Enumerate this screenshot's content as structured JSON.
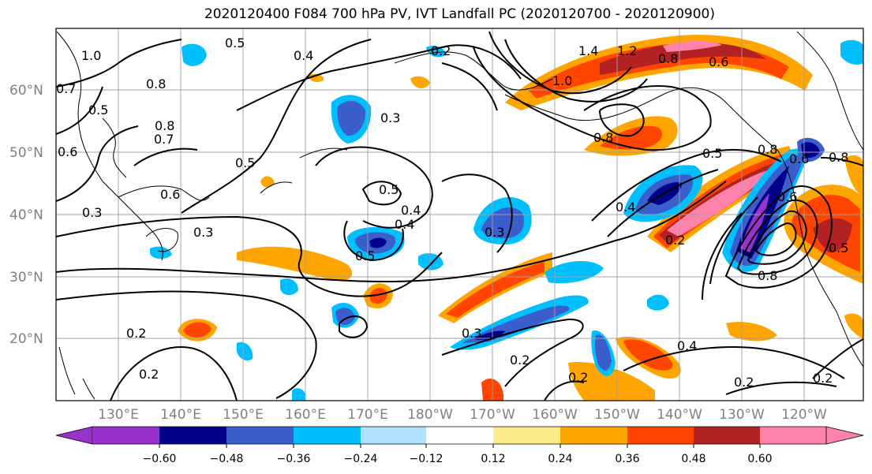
{
  "title": "2020120400 F084 700 hPa PV, IVT Landfall PC (2020120700 - 2020120900)",
  "lat_labels": [
    "60°N",
    "50°N",
    "40°N",
    "30°N",
    "20°N"
  ],
  "lon_labels": [
    "130°E",
    "140°E",
    "150°E",
    "160°E",
    "170°E",
    "180°W",
    "170°W",
    "160°W",
    "150°W",
    "140°W",
    "130°W",
    "120°W"
  ],
  "colorbar": {
    "ticks": [
      "−0.60",
      "−0.48",
      "−0.36",
      "−0.24",
      "−0.12",
      "0.12",
      "0.24",
      "0.36",
      "0.48",
      "0.60"
    ],
    "colors": [
      "#9932cc",
      "#00008b",
      "#3a5fcd",
      "#00bfff",
      "#b0e2ff",
      "#ffffff",
      "#ffec8b",
      "#ffa500",
      "#ff4500",
      "#b22222",
      "#ff82ab"
    ]
  },
  "contour_labels": [
    "1.0",
    "0.5",
    "0.4",
    "0.2",
    "1.4",
    "1.2",
    "0.8",
    "0.6",
    "0.7",
    "0.8",
    "0.5",
    "1.0",
    "0.3",
    "0.8",
    "0.7",
    "0.5",
    "0.6",
    "0.8",
    "0.5",
    "0.6",
    "0.3",
    "0.5",
    "0.4",
    "0.5",
    "0.3",
    "0.4",
    "0.4",
    "0.3",
    "0.8",
    "0.5",
    "0.6",
    "0.2",
    "0.8",
    "0.8",
    "0.6",
    "0.2",
    "0.3",
    "0.2",
    "0.2",
    "0.4",
    "0.2",
    "0.2",
    "0.2"
  ]
}
